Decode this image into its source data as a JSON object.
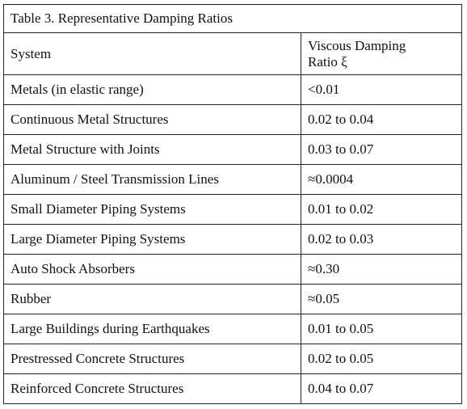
{
  "table": {
    "title": "Table 3.  Representative Damping Ratios",
    "header": [
      "System",
      "Viscous Damping Ratio ξ"
    ],
    "rows": [
      [
        "Metals (in elastic range)",
        "<0.01"
      ],
      [
        "Continuous Metal Structures",
        "0.02 to 0.04"
      ],
      [
        "Metal Structure with Joints",
        "0.03 to 0.07"
      ],
      [
        "Aluminum / Steel Transmission Lines",
        "≈0.0004"
      ],
      [
        "Small Diameter Piping Systems",
        "0.01 to 0.02"
      ],
      [
        "Large Diameter Piping Systems",
        "0.02 to 0.03"
      ],
      [
        "Auto Shock Absorbers",
        "≈0.30"
      ],
      [
        "Rubber",
        "≈0.05"
      ],
      [
        "Large Buildings during Earthquakes",
        "0.01 to 0.05"
      ],
      [
        "Prestressed Concrete Structures",
        "0.02 to 0.05"
      ],
      [
        "Reinforced Concrete Structures",
        "0.04 to 0.07"
      ]
    ]
  }
}
